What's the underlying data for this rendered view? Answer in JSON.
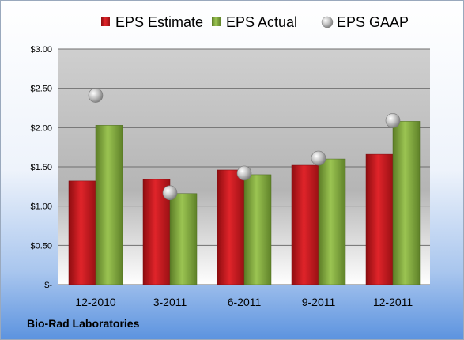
{
  "chart_data": {
    "type": "bar",
    "categories": [
      "12-2010",
      "3-2011",
      "6-2011",
      "9-2011",
      "12-2011"
    ],
    "series": [
      {
        "name": "EPS Estimate",
        "kind": "bar",
        "color": "#c0141a",
        "values": [
          1.32,
          1.34,
          1.46,
          1.52,
          1.66
        ]
      },
      {
        "name": "EPS Actual",
        "kind": "bar",
        "color": "#7ea33c",
        "values": [
          2.03,
          1.16,
          1.4,
          1.6,
          2.08
        ]
      },
      {
        "name": "EPS GAAP",
        "kind": "marker",
        "color": "#b4b4b4",
        "values": [
          2.41,
          1.17,
          1.42,
          1.61,
          2.09
        ]
      }
    ],
    "ylim": [
      0,
      3.0
    ],
    "yticks": [
      0,
      0.5,
      1.0,
      1.5,
      2.0,
      2.5,
      3.0
    ],
    "ytick_labels": [
      "$-",
      "$0.50",
      "$1.00",
      "$1.50",
      "$2.00",
      "$2.50",
      "$3.00"
    ],
    "grid": true,
    "legend_position": "top"
  },
  "footer": {
    "company": "Bio-Rad Laboratories"
  }
}
